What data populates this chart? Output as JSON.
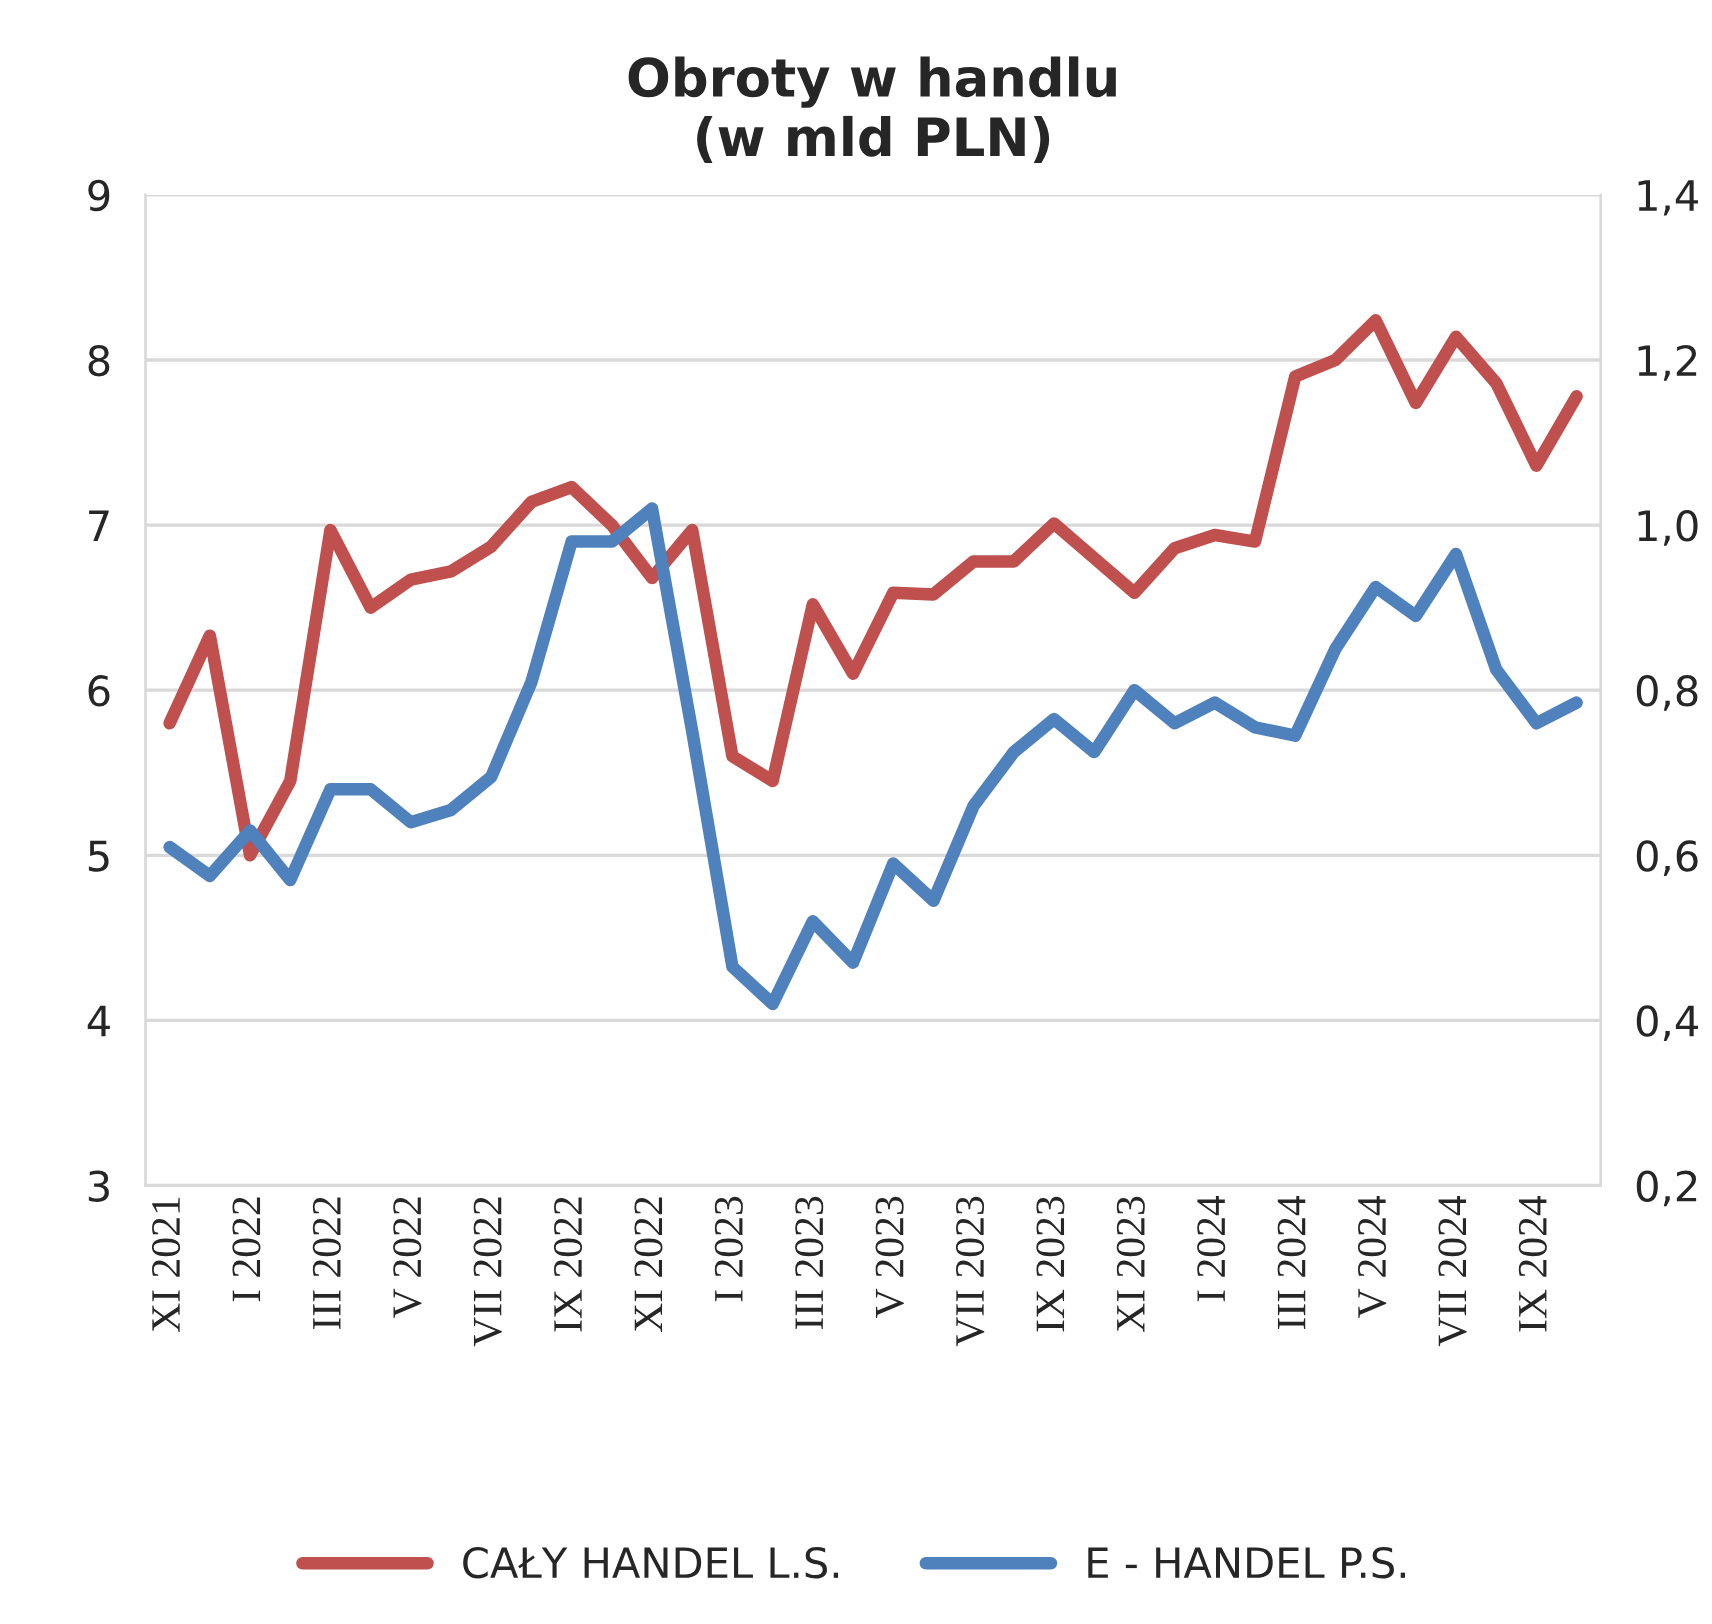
{
  "chart_data": {
    "type": "line",
    "title": "Obroty w handlu\n(w mld PLN)",
    "categories": [
      "XI 2021",
      null,
      "I 2022",
      null,
      "III 2022",
      null,
      "V 2022",
      null,
      "VII 2022",
      null,
      "IX 2022",
      null,
      "XI 2022",
      null,
      "I 2023",
      null,
      "III 2023",
      null,
      "V 2023",
      null,
      "VII 2023",
      null,
      "IX 2023",
      null,
      "XI 2023",
      null,
      "I 2024",
      null,
      "III 2024",
      null,
      "V 2024",
      null,
      "VII 2024",
      null,
      "IX 2024",
      null
    ],
    "series": [
      {
        "name": "CAŁY HANDEL L.S.",
        "color": "#c0504d",
        "values": [
          5.8,
          6.33,
          5.0,
          5.45,
          6.97,
          6.5,
          6.67,
          6.72,
          6.87,
          7.14,
          7.23,
          7.0,
          6.68,
          6.97,
          5.6,
          5.45,
          6.52,
          6.1,
          6.59,
          6.58,
          6.78,
          6.78,
          7.01,
          6.8,
          6.59,
          6.86,
          6.94,
          6.9,
          7.9,
          8.0,
          8.24,
          7.74,
          8.14,
          7.86,
          7.36,
          7.78
        ]
      },
      {
        "name": "E - HANDEL P.S.",
        "color": "#4f81bd",
        "axis": "y2",
        "values": [
          0.61,
          0.575,
          0.63,
          0.57,
          0.68,
          0.68,
          0.64,
          0.655,
          0.695,
          0.81,
          0.98,
          0.98,
          1.02,
          0.75,
          0.465,
          0.42,
          0.52,
          0.47,
          0.59,
          0.545,
          0.66,
          0.725,
          0.765,
          0.725,
          0.8,
          0.76,
          0.785,
          0.755,
          0.745,
          0.85,
          0.925,
          0.89,
          0.965,
          0.825,
          0.76,
          0.785
        ]
      }
    ],
    "ylim": [
      3,
      9
    ],
    "yticks": [
      3,
      4,
      5,
      6,
      7,
      8,
      9
    ],
    "y2lim": [
      0.2,
      1.4
    ],
    "y2ticks": [
      {
        "value": 0.2,
        "label": "0,2"
      },
      {
        "value": 0.4,
        "label": "0,4"
      },
      {
        "value": 0.6,
        "label": "0,6"
      },
      {
        "value": 0.8,
        "label": "0,8"
      },
      {
        "value": 1.0,
        "label": "1,0"
      },
      {
        "value": 1.2,
        "label": "1,2"
      },
      {
        "value": 1.4,
        "label": "1,4"
      }
    ],
    "grid": "y",
    "legend": "bottom",
    "marker": "none",
    "line_style": "solid"
  }
}
